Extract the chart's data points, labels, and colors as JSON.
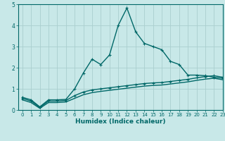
{
  "xlabel": "Humidex (Indice chaleur)",
  "ylabel": "",
  "xlim": [
    -0.5,
    23
  ],
  "ylim": [
    0,
    5
  ],
  "xticks": [
    0,
    1,
    2,
    3,
    4,
    5,
    6,
    7,
    8,
    9,
    10,
    11,
    12,
    13,
    14,
    15,
    16,
    17,
    18,
    19,
    20,
    21,
    22,
    23
  ],
  "yticks": [
    0,
    1,
    2,
    3,
    4,
    5
  ],
  "bg_color": "#c8e8e8",
  "grid_color": "#aacece",
  "line_color": "#006868",
  "line1_x": [
    0,
    1,
    2,
    3,
    4,
    5,
    6,
    7,
    8,
    9,
    10,
    11,
    12,
    13,
    14,
    15,
    16,
    17,
    18,
    19,
    20,
    21,
    22,
    23
  ],
  "line1_y": [
    0.6,
    0.48,
    0.15,
    0.48,
    0.48,
    0.5,
    1.0,
    1.75,
    2.4,
    2.15,
    2.6,
    4.0,
    4.82,
    3.7,
    3.15,
    3.0,
    2.85,
    2.3,
    2.15,
    1.65,
    1.65,
    1.62,
    1.55,
    1.5
  ],
  "line2_x": [
    0,
    1,
    2,
    3,
    4,
    5,
    6,
    7,
    8,
    9,
    10,
    11,
    12,
    13,
    14,
    15,
    16,
    17,
    18,
    19,
    20,
    21,
    22,
    23
  ],
  "line2_y": [
    0.55,
    0.42,
    0.12,
    0.42,
    0.42,
    0.45,
    0.68,
    0.85,
    0.95,
    1.0,
    1.05,
    1.1,
    1.15,
    1.2,
    1.25,
    1.28,
    1.3,
    1.35,
    1.4,
    1.45,
    1.52,
    1.58,
    1.62,
    1.55
  ],
  "line3_x": [
    0,
    1,
    2,
    3,
    4,
    5,
    6,
    7,
    8,
    9,
    10,
    11,
    12,
    13,
    14,
    15,
    16,
    17,
    18,
    19,
    20,
    21,
    22,
    23
  ],
  "line3_y": [
    0.48,
    0.35,
    0.08,
    0.35,
    0.35,
    0.38,
    0.55,
    0.72,
    0.82,
    0.88,
    0.93,
    0.98,
    1.03,
    1.08,
    1.13,
    1.16,
    1.18,
    1.23,
    1.28,
    1.33,
    1.4,
    1.46,
    1.5,
    1.43
  ]
}
